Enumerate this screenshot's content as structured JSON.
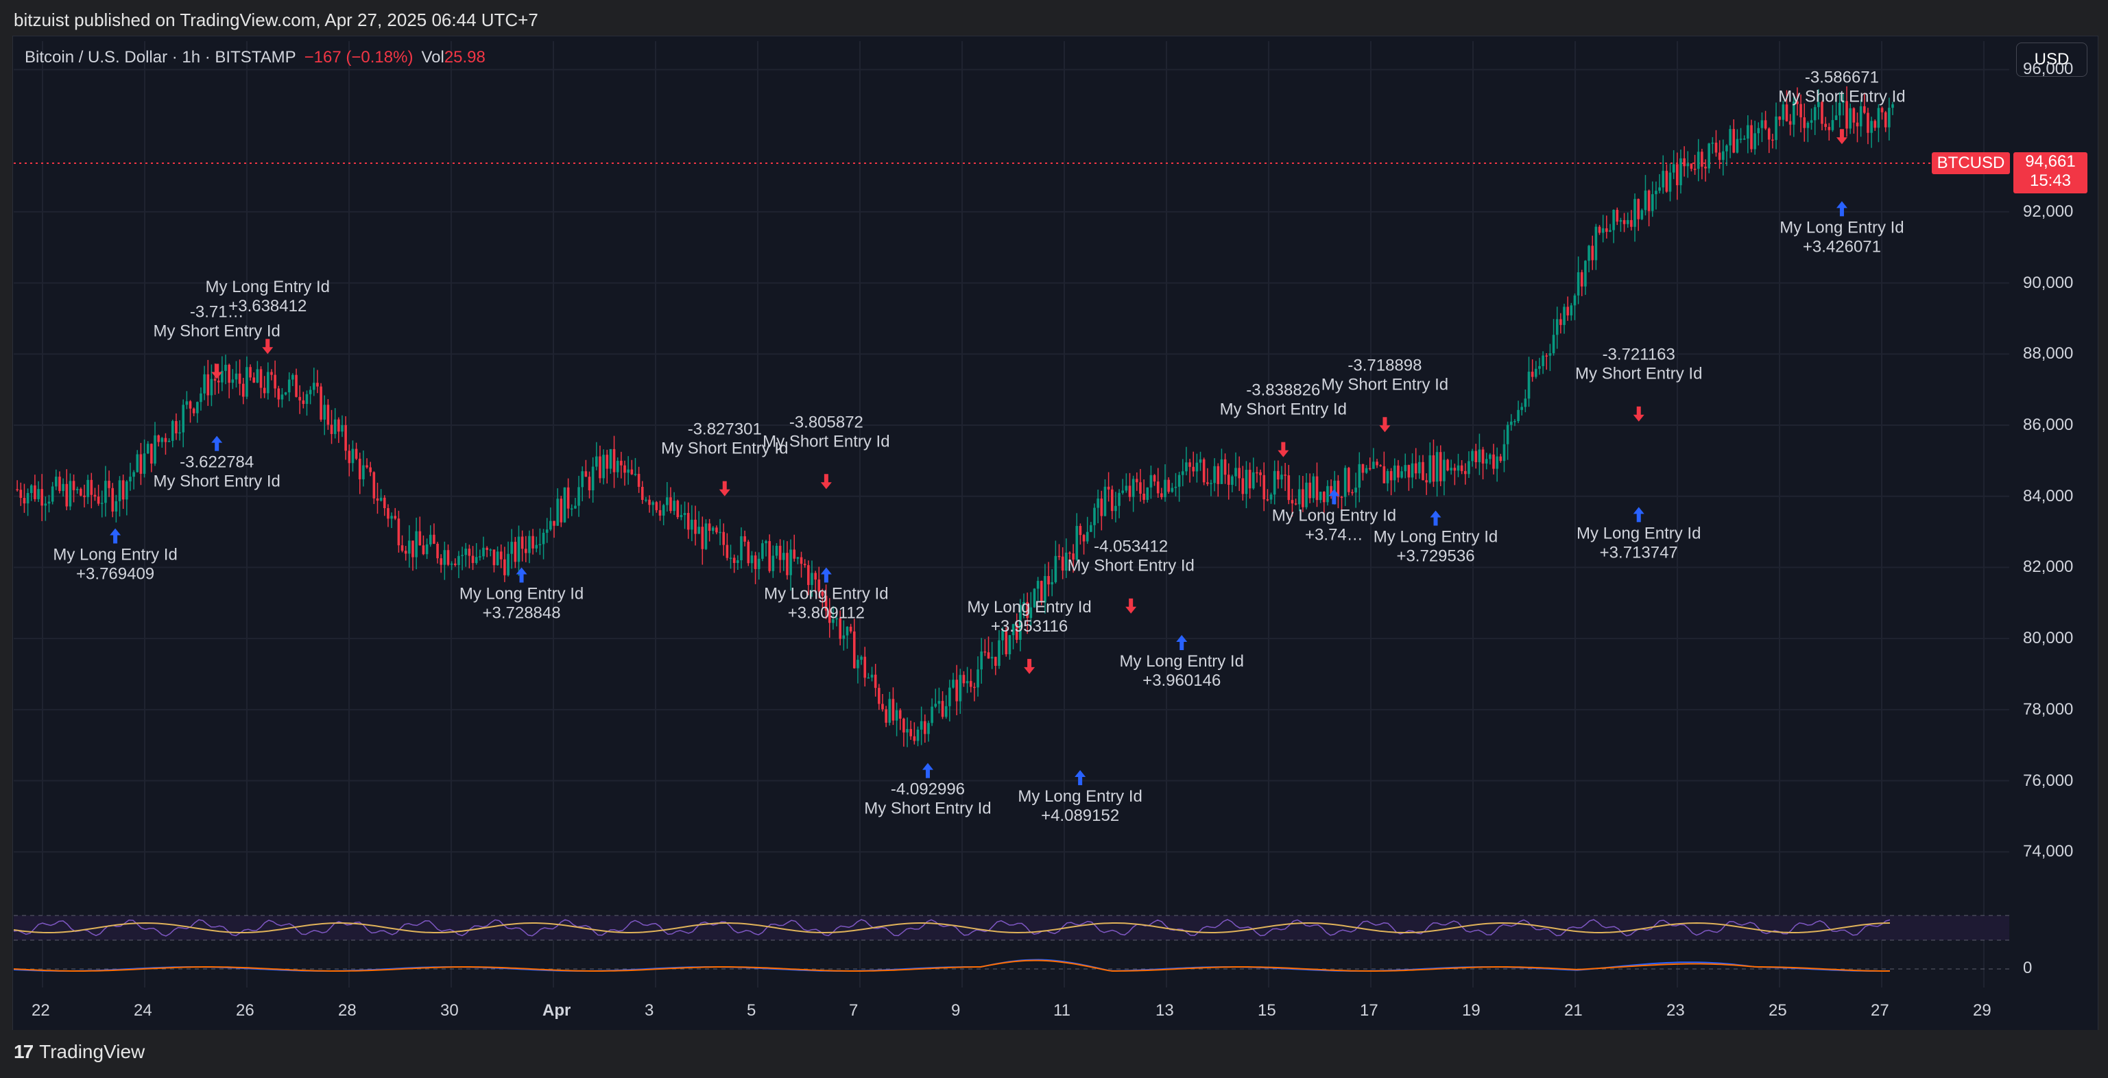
{
  "header": {
    "published": "bitzuist published on TradingView.com, Apr 27, 2025 06:44 UTC+7"
  },
  "legend": {
    "symbol": "Bitcoin / U.S. Dollar · 1h · BITSTAMP",
    "change": "−167 (−0.18%)",
    "vol_label": "Vol",
    "vol_value": "25.98"
  },
  "currency_button": "USD",
  "last_price": {
    "symbol": "BTCUSD",
    "price": "94,661",
    "countdown": "15:43"
  },
  "price_axis": [
    "96,000",
    "92,000",
    "90,000",
    "88,000",
    "86,000",
    "84,000",
    "82,000",
    "80,000",
    "78,000",
    "76,000",
    "74,000"
  ],
  "macd_axis": "0",
  "time_axis": [
    "22",
    "24",
    "26",
    "28",
    "30",
    "Apr",
    "3",
    "5",
    "7",
    "9",
    "11",
    "13",
    "15",
    "17",
    "19",
    "21",
    "23",
    "25",
    "27",
    "29"
  ],
  "trade_labels": [
    {
      "line1": "My Long Entry Id",
      "line2": "+3.769409"
    },
    {
      "line1": "-3.71…",
      "line2": "My Short Entry Id"
    },
    {
      "line1": "-3.622784",
      "line2": "My Short Entry Id"
    },
    {
      "line1": "My Long Entry Id",
      "line2": "+3.638412"
    },
    {
      "line1": "My Long Entry Id",
      "line2": "+3.728848"
    },
    {
      "line1": "-3.827301",
      "line2": "My Short Entry Id"
    },
    {
      "line1": "-3.805872",
      "line2": "My Short Entry Id"
    },
    {
      "line1": "My Long Entry Id",
      "line2": "+3.809112"
    },
    {
      "line1": "-4.092996",
      "line2": "My Short Entry Id"
    },
    {
      "line1": "My Long Entry Id",
      "line2": "+3.953116"
    },
    {
      "line1": "My Long Entry Id",
      "line2": "+4.089152"
    },
    {
      "line1": "-4.053412",
      "line2": "My Short Entry Id"
    },
    {
      "line1": "My Long Entry Id",
      "line2": "+3.960146"
    },
    {
      "line1": "-3.838826",
      "line2": "My Short Entry Id"
    },
    {
      "line1": "-3.718898",
      "line2": "My Short Entry Id"
    },
    {
      "line1": "My Long Entry Id",
      "line2": "+3.74…"
    },
    {
      "line1": "My Long Entry Id",
      "line2": "+3.729536"
    },
    {
      "line1": "-3.721163",
      "line2": "My Short Entry Id"
    },
    {
      "line1": "My Long Entry Id",
      "line2": "+3.713747"
    },
    {
      "line1": "-3.586671",
      "line2": "My Short Entry Id"
    },
    {
      "line1": "My Long Entry Id",
      "line2": "+3.426071"
    }
  ],
  "brand": "TradingView",
  "colors": {
    "up": "#089981",
    "down": "#f23645",
    "long_marker": "#2962ff",
    "short_marker": "#f23645",
    "background": "#131722"
  },
  "chart_data": {
    "type": "candlestick",
    "x_unit": "date (Mar 21 – Apr 27, 2025)",
    "x": [
      "Mar 21",
      "Mar 23",
      "Mar 25",
      "Mar 27",
      "Mar 29",
      "Mar 31",
      "Apr 2",
      "Apr 4",
      "Apr 6",
      "Apr 8",
      "Apr 10",
      "Apr 12",
      "Apr 14",
      "Apr 16",
      "Apr 18",
      "Apr 20",
      "Apr 22",
      "Apr 24",
      "Apr 26",
      "Apr 27"
    ],
    "close": [
      84200,
      84000,
      87300,
      87000,
      82600,
      82200,
      85000,
      82800,
      82000,
      77200,
      79800,
      83800,
      84800,
      84100,
      84700,
      85100,
      91200,
      93500,
      94700,
      94661
    ],
    "ylim": [
      72500,
      96800
    ],
    "trades": [
      {
        "date": "Mar 23",
        "side": "long",
        "price": 83600
      },
      {
        "date": "Mar 25",
        "side": "short",
        "price": 86800
      },
      {
        "date": "Mar 25",
        "side": "long",
        "price": 86200
      },
      {
        "date": "Mar 26",
        "side": "short",
        "price": 87500
      },
      {
        "date": "Mar 31",
        "side": "long",
        "price": 82500
      },
      {
        "date": "Apr 3",
        "side": "short",
        "price": 83500
      },
      {
        "date": "Apr 5",
        "side": "short",
        "price": 83700
      },
      {
        "date": "Apr 5",
        "side": "long",
        "price": 82500
      },
      {
        "date": "Apr 7",
        "side": "long",
        "price": 77000
      },
      {
        "date": "Apr 9",
        "side": "short",
        "price": 78500
      },
      {
        "date": "Apr 10",
        "side": "long",
        "price": 76800
      },
      {
        "date": "Apr 11",
        "side": "short",
        "price": 80200
      },
      {
        "date": "Apr 12",
        "side": "long",
        "price": 80600
      },
      {
        "date": "Apr 14",
        "side": "short",
        "price": 84600
      },
      {
        "date": "Apr 16",
        "side": "short",
        "price": 85300
      },
      {
        "date": "Apr 15",
        "side": "long",
        "price": 84700
      },
      {
        "date": "Apr 17",
        "side": "long",
        "price": 84100
      },
      {
        "date": "Apr 21",
        "side": "short",
        "price": 85600
      },
      {
        "date": "Apr 21",
        "side": "long",
        "price": 84200
      },
      {
        "date": "Apr 25",
        "side": "short",
        "price": 93400
      },
      {
        "date": "Apr 25",
        "side": "long",
        "price": 92800
      }
    ]
  }
}
